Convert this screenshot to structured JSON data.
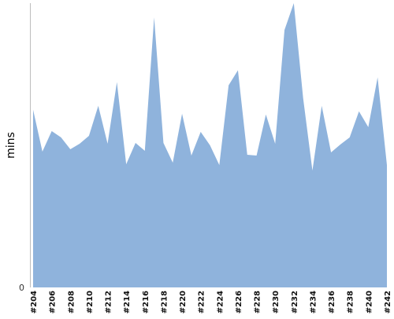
{
  "chart_data": {
    "type": "area",
    "title": "",
    "xlabel": "",
    "ylabel": "mins",
    "ylim": [
      0,
      360
    ],
    "y_ticks": [
      0
    ],
    "grid": false,
    "legend": "none",
    "fill_color": "#8fb3dc",
    "x_ticks": [
      "#204",
      "#206",
      "#208",
      "#210",
      "#212",
      "#214",
      "#216",
      "#218",
      "#220",
      "#222",
      "#224",
      "#226",
      "#228",
      "#230",
      "#232",
      "#234",
      "#236",
      "#238",
      "#240",
      "#242"
    ],
    "x": [
      "#204",
      "#205",
      "#206",
      "#207",
      "#208",
      "#209",
      "#210",
      "#211",
      "#212",
      "#213",
      "#214",
      "#215",
      "#216",
      "#217",
      "#218",
      "#219",
      "#220",
      "#221",
      "#222",
      "#223",
      "#224",
      "#225",
      "#226",
      "#227",
      "#228",
      "#229",
      "#230",
      "#231",
      "#232",
      "#233",
      "#234",
      "#235",
      "#236",
      "#237",
      "#238",
      "#239",
      "#240",
      "#241",
      "#242"
    ],
    "series": [
      {
        "values": [
          225,
          172,
          198,
          190,
          175,
          182,
          192,
          230,
          182,
          260,
          156,
          183,
          173,
          342,
          183,
          158,
          220,
          167,
          197,
          180,
          155,
          256,
          275,
          168,
          167,
          219,
          182,
          326,
          360,
          240,
          148,
          230,
          171,
          181,
          190,
          223,
          203,
          266,
          155
        ]
      }
    ]
  }
}
